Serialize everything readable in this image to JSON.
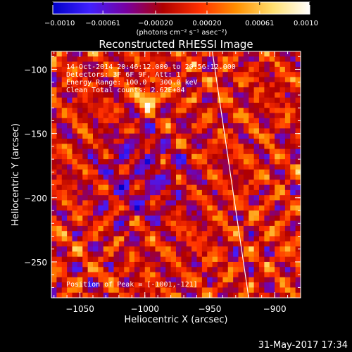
{
  "chart_data": {
    "type": "heatmap",
    "title": "Reconstructed RHESSI Image",
    "xlabel": "Heliocentric X (arcsec)",
    "ylabel": "Heliocentric Y (arcsec)",
    "xlim": [
      -1072,
      -880
    ],
    "ylim": [
      -278,
      -86
    ],
    "x_ticks": [
      -1050,
      -1000,
      -950,
      -900
    ],
    "x_tick_labels": [
      "−1050",
      "−1000",
      "−950",
      "−900"
    ],
    "y_ticks": [
      -100,
      -150,
      -200,
      -250
    ],
    "y_tick_labels": [
      "−100",
      "−150",
      "−200",
      "−250"
    ],
    "colorbar": {
      "min": -0.001,
      "max": 0.001,
      "ticks": [
        -0.001,
        -0.00061,
        -0.0002,
        0.0002,
        0.00061,
        0.001
      ],
      "tick_labels": [
        "−0.0010",
        "−0.00061",
        "−0.00020",
        "0.00020",
        "0.00061",
        "0.0010"
      ],
      "units": "(photons cm⁻² s⁻¹ asec⁻²)",
      "colormap": [
        "#0000c8",
        "#4020ff",
        "#7800a0",
        "#b00000",
        "#ff3000",
        "#ff9000",
        "#ffe070",
        "#ffffff"
      ]
    },
    "annotations": [
      "14-Oct-2014 20:46:12.000 to 20:56:12.000",
      "Detectors: 3F 6F 9F, Att: 1",
      "Energy Range: 100.0 - 300.0 keV",
      "Clean     Total counts: 2.62E+04"
    ],
    "peak_label": "Position of Peak = [-1001,-121]",
    "limb_line": {
      "x": [
        -948,
        -920
      ],
      "y": [
        -86,
        -278
      ]
    },
    "pixel_size_arcsec": 4
  },
  "footer": {
    "timestamp": "31-May-2017 17:34"
  }
}
